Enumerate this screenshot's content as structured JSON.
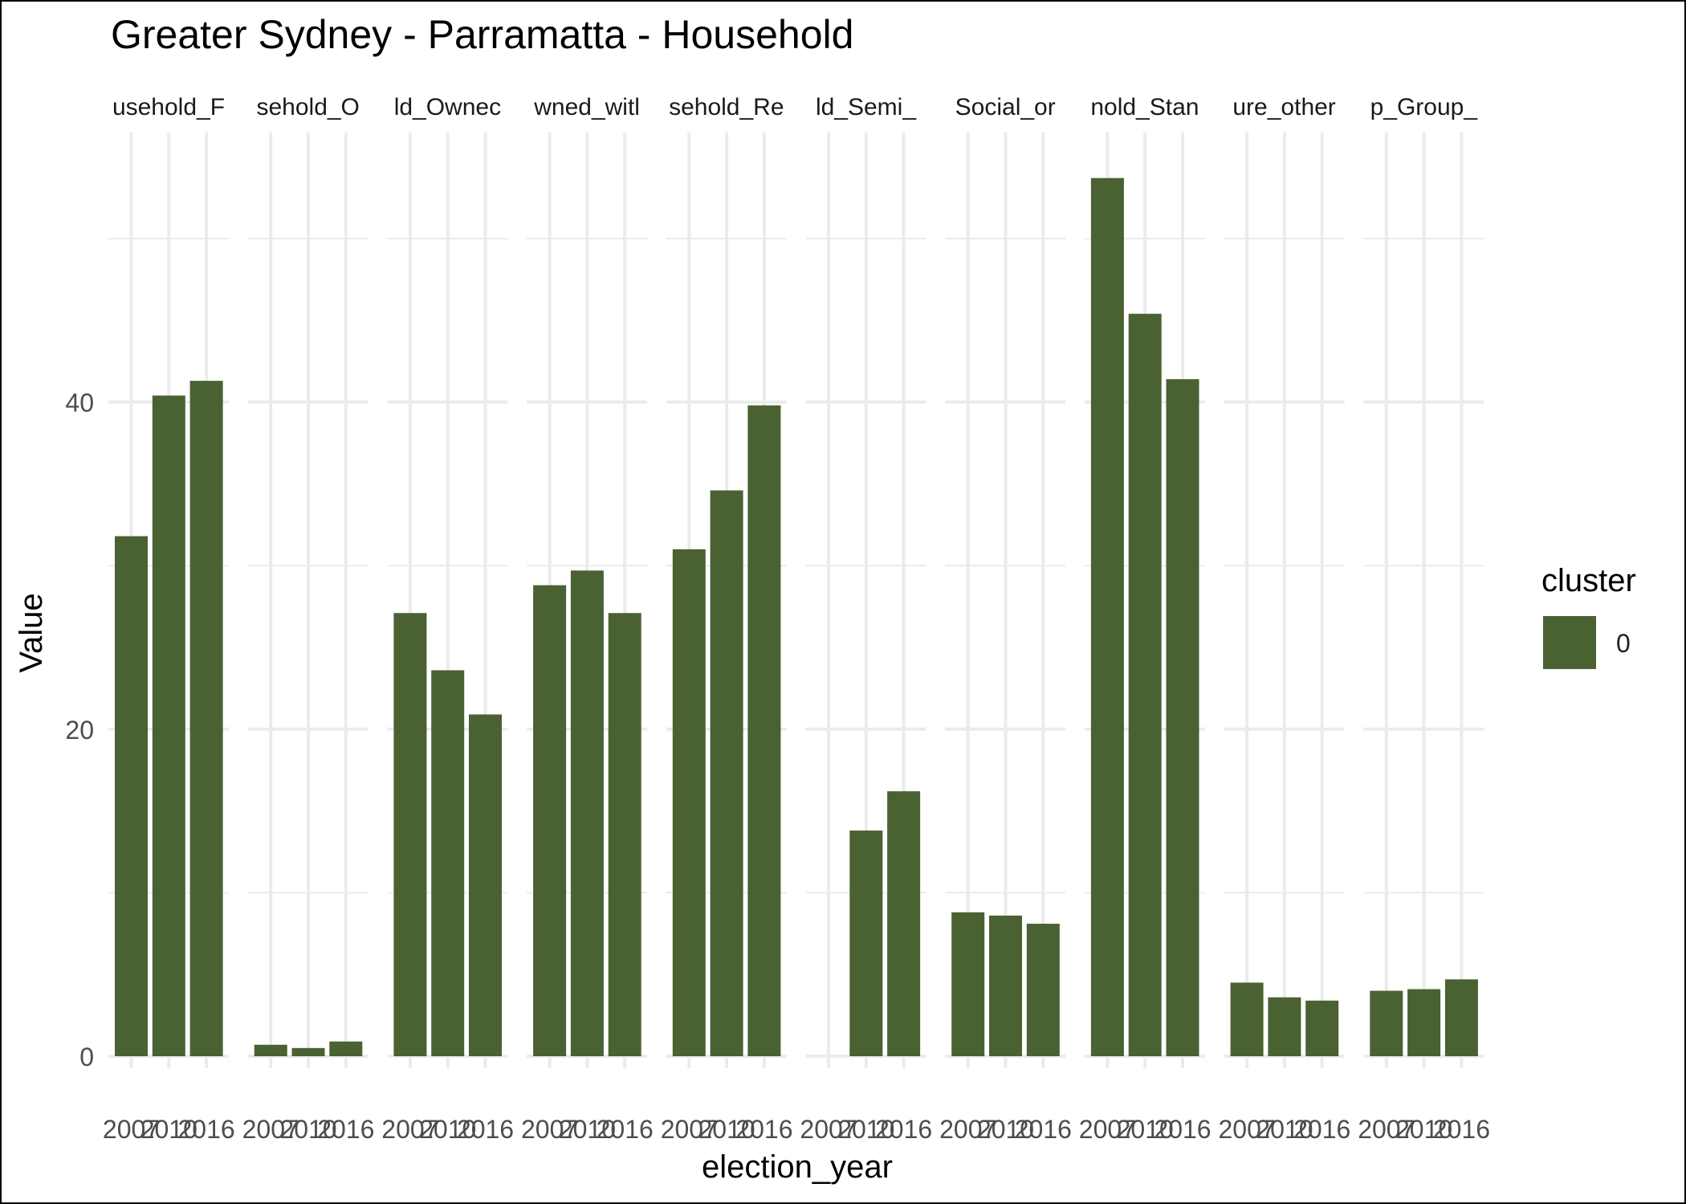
{
  "chart_data": {
    "type": "bar",
    "title": "Greater Sydney - Parramatta - Household",
    "xlabel": "election_year",
    "ylabel": "Value",
    "ylim": [
      0,
      56
    ],
    "yticks": [
      0,
      20,
      40
    ],
    "x_categories": [
      "2007",
      "2010",
      "2016"
    ],
    "legend": {
      "title": "cluster",
      "entries": [
        "0"
      ],
      "position": "right"
    },
    "bar_color": "#4a6132",
    "panels": [
      {
        "label": "usehold_F",
        "values": [
          31.8,
          40.4,
          41.3
        ]
      },
      {
        "label": "sehold_O",
        "values": [
          0.7,
          0.5,
          0.9
        ]
      },
      {
        "label": "ld_Ownec",
        "values": [
          27.1,
          23.6,
          20.9
        ]
      },
      {
        "label": "wned_witl",
        "values": [
          28.8,
          29.7,
          27.1
        ]
      },
      {
        "label": "sehold_Re",
        "values": [
          31.0,
          34.6,
          39.8
        ]
      },
      {
        "label": "ld_Semi_",
        "values": [
          null,
          13.8,
          16.2
        ]
      },
      {
        "label": "Social_or",
        "values": [
          8.8,
          8.6,
          8.1
        ]
      },
      {
        "label": "nold_Stan",
        "values": [
          53.7,
          45.4,
          41.4
        ]
      },
      {
        "label": "ure_other",
        "values": [
          4.5,
          3.6,
          3.4
        ]
      },
      {
        "label": "p_Group_",
        "values": [
          4.0,
          4.1,
          4.7
        ]
      }
    ]
  }
}
